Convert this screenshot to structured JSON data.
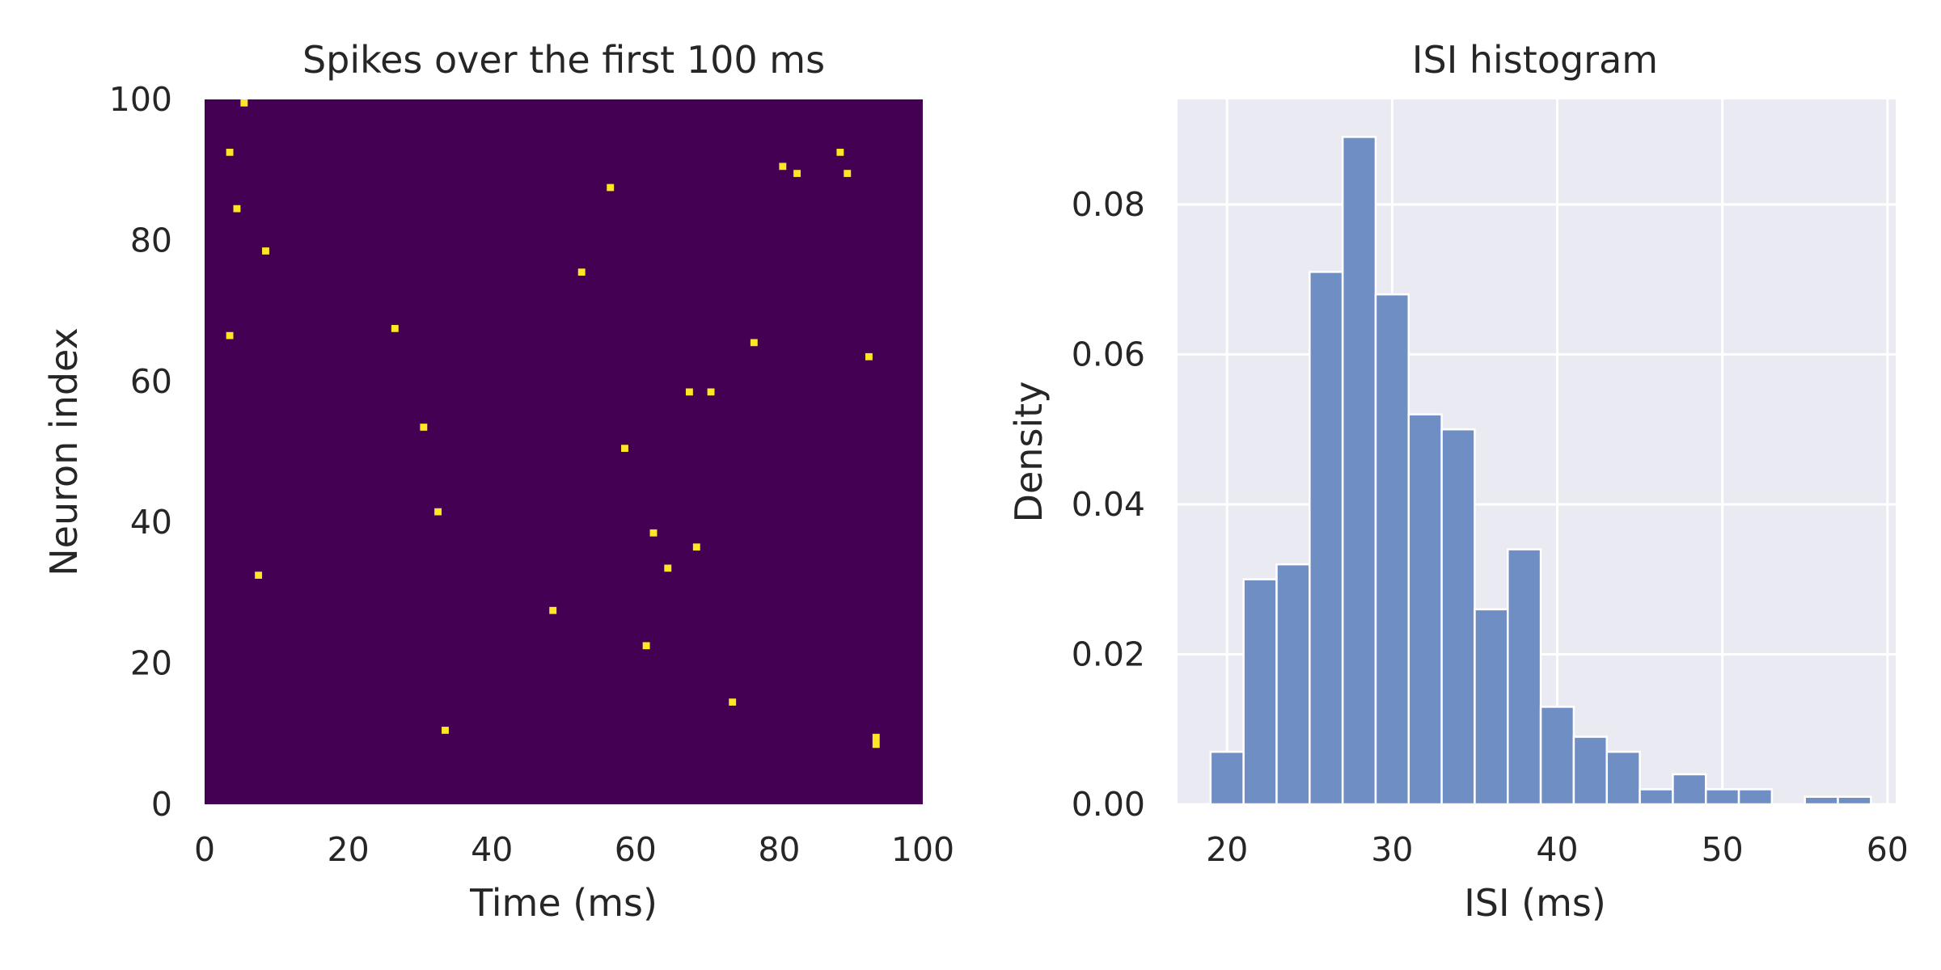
{
  "chart_data": [
    {
      "type": "heatmap",
      "title": "Spikes over the first 100 ms",
      "xlabel": "Time (ms)",
      "ylabel": "Neuron index",
      "xlim": [
        0,
        100
      ],
      "ylim": [
        0,
        100
      ],
      "xticks": [
        "0",
        "20",
        "40",
        "60",
        "80",
        "100"
      ],
      "yticks": [
        "0",
        "20",
        "40",
        "60",
        "80",
        "100"
      ],
      "grid": false,
      "colors": {
        "background": "#440154",
        "spike": "#fde725"
      },
      "spikes": [
        {
          "x": 5,
          "y": 99
        },
        {
          "x": 3,
          "y": 92
        },
        {
          "x": 4,
          "y": 84
        },
        {
          "x": 8,
          "y": 78
        },
        {
          "x": 3,
          "y": 66
        },
        {
          "x": 7,
          "y": 32
        },
        {
          "x": 26,
          "y": 67
        },
        {
          "x": 30,
          "y": 53
        },
        {
          "x": 32,
          "y": 41
        },
        {
          "x": 33,
          "y": 10
        },
        {
          "x": 48,
          "y": 27
        },
        {
          "x": 52,
          "y": 75
        },
        {
          "x": 56,
          "y": 87
        },
        {
          "x": 58,
          "y": 50
        },
        {
          "x": 61,
          "y": 22
        },
        {
          "x": 62,
          "y": 38
        },
        {
          "x": 64,
          "y": 33
        },
        {
          "x": 67,
          "y": 58
        },
        {
          "x": 68,
          "y": 36
        },
        {
          "x": 70,
          "y": 58
        },
        {
          "x": 73,
          "y": 14
        },
        {
          "x": 76,
          "y": 65
        },
        {
          "x": 80,
          "y": 90
        },
        {
          "x": 82,
          "y": 89
        },
        {
          "x": 88,
          "y": 92
        },
        {
          "x": 89,
          "y": 89
        },
        {
          "x": 92,
          "y": 63
        },
        {
          "x": 93,
          "y": 9
        },
        {
          "x": 93,
          "y": 8
        }
      ]
    },
    {
      "type": "bar",
      "title": "ISI histogram",
      "xlabel": "ISI (ms)",
      "ylabel": "Density",
      "xlim": [
        17,
        60.5
      ],
      "ylim": [
        0,
        0.094
      ],
      "xticks": [
        "20",
        "30",
        "40",
        "50",
        "60"
      ],
      "yticks": [
        "0.00",
        "0.02",
        "0.04",
        "0.06",
        "0.08"
      ],
      "grid": true,
      "colors": {
        "background": "#eaeaf2",
        "bar": "#6f8fc4",
        "grid": "#ffffff"
      },
      "bin_width": 2,
      "bin_starts": [
        19,
        21,
        23,
        25,
        27,
        29,
        31,
        33,
        35,
        37,
        39,
        41,
        43,
        45,
        47,
        49,
        51,
        53,
        55,
        57
      ],
      "values": [
        0.007,
        0.03,
        0.032,
        0.071,
        0.089,
        0.068,
        0.052,
        0.05,
        0.026,
        0.034,
        0.013,
        0.009,
        0.007,
        0.002,
        0.004,
        0.002,
        0.002,
        0.0,
        0.001,
        0.001
      ]
    }
  ]
}
